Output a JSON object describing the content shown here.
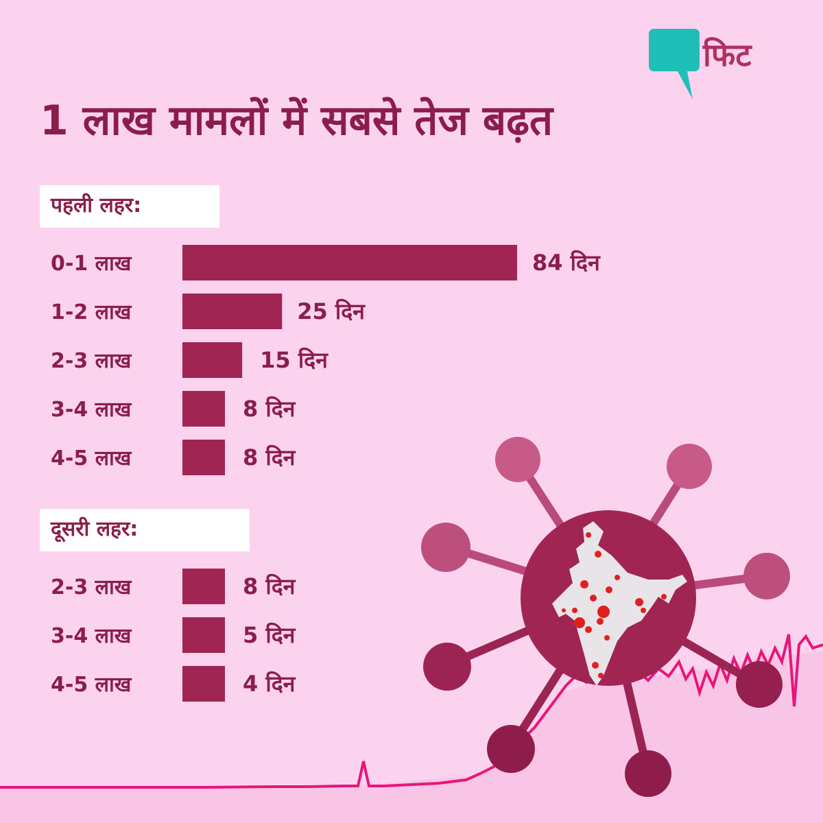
{
  "brand": {
    "logo_text": "फिट",
    "accent": "#1fbfb8",
    "brand_color": "#b03060"
  },
  "title": "1 लाख मामलों में सबसे तेज बढ़त",
  "colors": {
    "background": "#fcd3ef",
    "bar": "#a02553",
    "text": "#8b1d4a",
    "virus": "#a02553",
    "map_dots": "#e0201e",
    "line": "#e8157a"
  },
  "chart_data": {
    "type": "bar",
    "orientation": "horizontal",
    "title": "1 लाख मामलों में सबसे तेज बढ़त",
    "unit": "दिन",
    "max_value": 84,
    "groups": [
      {
        "name": "पहली लहर:",
        "categories": [
          "0-1 लाख",
          "1-2 लाख",
          "2-3 लाख",
          "3-4 लाख",
          "4-5 लाख"
        ],
        "values": [
          84,
          25,
          15,
          8,
          8
        ],
        "labels": [
          "84 दिन",
          "25 दिन",
          "15 दिन",
          "8 दिन",
          "8 दिन"
        ]
      },
      {
        "name": "दूसरी लहर:",
        "categories": [
          "2-3 लाख",
          "3-4 लाख",
          "4-5 लाख"
        ],
        "values": [
          8,
          5,
          4
        ],
        "labels": [
          "8 दिन",
          "5 दिन",
          "4 दिन"
        ]
      }
    ]
  }
}
